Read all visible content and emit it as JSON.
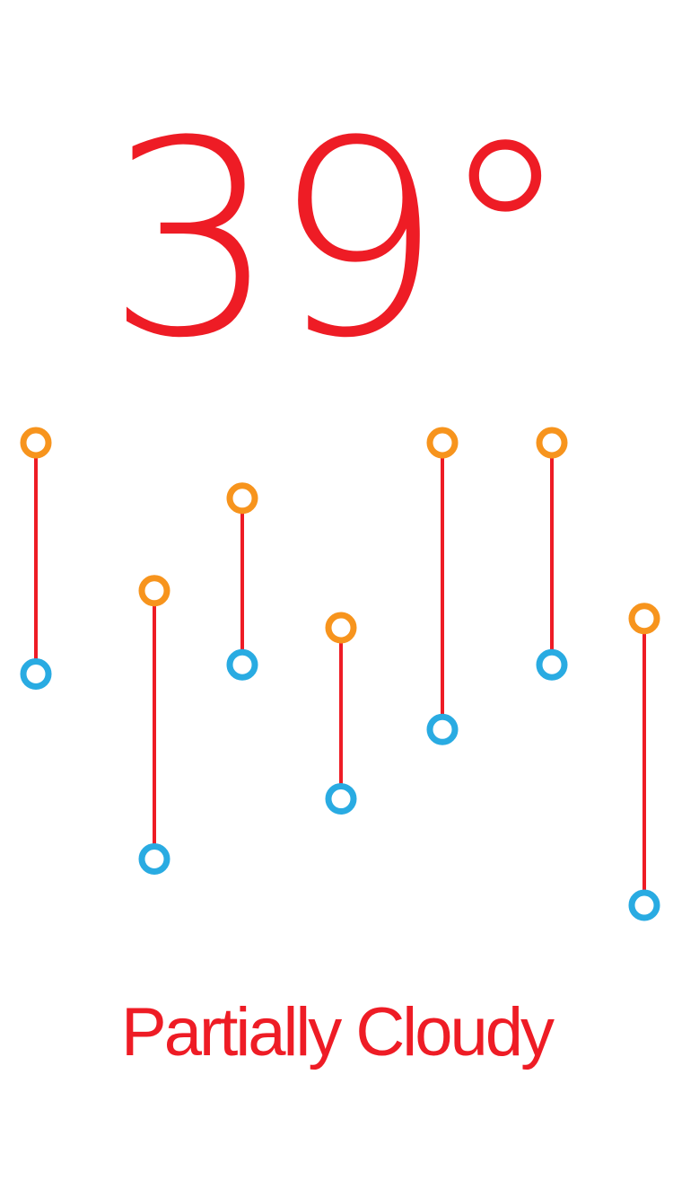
{
  "current": {
    "temperature": "39°",
    "condition": "Partially Cloudy"
  },
  "colors": {
    "accent": "#ee1c25",
    "high_marker": "#f7941d",
    "low_marker": "#29abe2",
    "background": "#ffffff"
  },
  "range_markers": [
    {
      "high_offset": 0.0,
      "low_offset": 0.5
    },
    {
      "high_offset": 0.32,
      "low_offset": 0.9
    },
    {
      "high_offset": 0.12,
      "low_offset": 0.48
    },
    {
      "high_offset": 0.4,
      "low_offset": 0.77
    },
    {
      "high_offset": 0.0,
      "low_offset": 0.62
    },
    {
      "high_offset": 0.0,
      "low_offset": 0.48
    },
    {
      "high_offset": 0.38,
      "low_offset": 1.0
    }
  ]
}
